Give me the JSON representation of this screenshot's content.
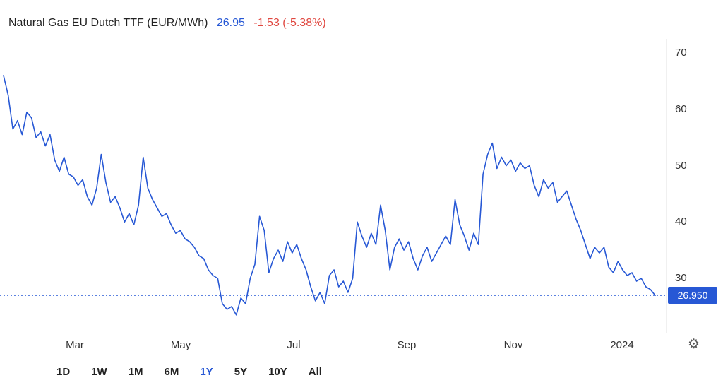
{
  "header": {
    "title": "Natural Gas EU Dutch TTF (EUR/MWh)",
    "price": "26.95",
    "change": "-1.53 (-5.38%)"
  },
  "colors": {
    "accent": "#2758d5",
    "negative": "#e04840",
    "axis_text": "#333333"
  },
  "icons": {
    "settings": "⚙"
  },
  "toolbar": {
    "ranges": [
      {
        "label": "1D",
        "active": false
      },
      {
        "label": "1W",
        "active": false
      },
      {
        "label": "1M",
        "active": false
      },
      {
        "label": "6M",
        "active": false
      },
      {
        "label": "1Y",
        "active": true
      },
      {
        "label": "5Y",
        "active": false
      },
      {
        "label": "10Y",
        "active": false
      },
      {
        "label": "All",
        "active": false
      }
    ]
  },
  "chart_data": {
    "type": "line",
    "title": "Natural Gas EU Dutch TTF (EUR/MWh)",
    "unit": "EUR/MWh",
    "current_price": 26.95,
    "change": -1.53,
    "change_pct": "-5.38%",
    "price_label": "26.950",
    "x_ticks": [
      "Mar",
      "May",
      "Jul",
      "Sep",
      "Nov",
      "2024"
    ],
    "y_ticks": [
      70,
      60,
      50,
      40,
      30
    ],
    "ylim": [
      20.5,
      72
    ],
    "xrange": "1 year (early 2023 to Jan 2024)",
    "grid": "off",
    "legend": "none",
    "values": [
      66.0,
      62.5,
      56.5,
      58.0,
      55.5,
      59.5,
      58.5,
      55.0,
      56.0,
      53.5,
      55.5,
      51.0,
      49.0,
      51.5,
      48.5,
      48.0,
      46.5,
      47.5,
      44.5,
      43.0,
      46.0,
      52.0,
      47.0,
      43.5,
      44.5,
      42.5,
      40.0,
      41.5,
      39.5,
      43.0,
      51.5,
      46.0,
      44.0,
      42.5,
      41.0,
      41.5,
      39.5,
      38.0,
      38.5,
      37.0,
      36.5,
      35.5,
      34.0,
      33.5,
      31.5,
      30.5,
      30.0,
      25.5,
      24.5,
      25.0,
      23.5,
      26.5,
      25.5,
      30.0,
      32.5,
      41.0,
      38.5,
      31.0,
      33.5,
      35.0,
      33.0,
      36.5,
      34.5,
      36.0,
      33.5,
      31.5,
      28.5,
      26.0,
      27.5,
      25.5,
      30.5,
      31.5,
      28.5,
      29.5,
      27.5,
      30.0,
      40.0,
      37.5,
      35.5,
      38.0,
      36.0,
      43.0,
      38.5,
      31.5,
      35.5,
      37.0,
      35.0,
      36.5,
      33.5,
      31.5,
      34.0,
      35.5,
      33.0,
      34.5,
      36.0,
      37.5,
      36.0,
      44.0,
      39.5,
      37.5,
      35.0,
      38.0,
      36.0,
      48.5,
      52.0,
      54.0,
      49.5,
      51.5,
      50.0,
      51.0,
      49.0,
      50.5,
      49.5,
      50.0,
      46.5,
      44.5,
      47.5,
      46.0,
      47.0,
      43.5,
      44.5,
      45.5,
      43.0,
      40.5,
      38.5,
      36.0,
      33.5,
      35.5,
      34.5,
      35.5,
      32.0,
      31.0,
      33.0,
      31.5,
      30.5,
      31.0,
      29.5,
      30.0,
      28.5,
      28.0,
      26.95
    ]
  }
}
